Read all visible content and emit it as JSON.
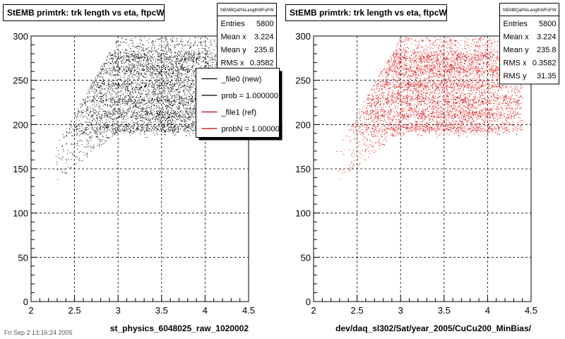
{
  "pads": [
    {
      "title": "StEMB primtrk: trk length vs eta, ftpcW",
      "stats": {
        "name": "StEMBQaPrkLengthWFoFW",
        "rows": [
          {
            "label": "Entries",
            "value": "5800"
          },
          {
            "label": "Mean x",
            "value": "3.224"
          },
          {
            "label": "Mean y",
            "value": "235.8"
          },
          {
            "label": "RMS x",
            "value": "0.3582"
          }
        ]
      },
      "legend": [
        {
          "label": "_file0 (new)",
          "color": "#000000"
        },
        {
          "label": "prob = 1.000000",
          "color": "#000000"
        },
        {
          "label": "_file1 (ref)",
          "color": "#cc0000"
        },
        {
          "label": "probN = 1.000000",
          "color": "#cc0000"
        }
      ],
      "xlabel": "st_physics_6048025_raw_1020002",
      "marker_color": "#000000"
    },
    {
      "title": "StEMB primtrk: trk length vs eta, ftpcW",
      "stats": {
        "name": "StEMBQaPrkLengthWFoFW",
        "rows": [
          {
            "label": "Entries",
            "value": "5800"
          },
          {
            "label": "Mean x",
            "value": "3.224"
          },
          {
            "label": "Mean y",
            "value": "235.8"
          },
          {
            "label": "RMS x",
            "value": "0.3582"
          },
          {
            "label": "RMS y",
            "value": "31.35"
          }
        ]
      },
      "legend": [],
      "xlabel": "dev/daq_sl302/Sat/year_2005/CuCu200_MinBias/",
      "marker_color": "#e00000"
    }
  ],
  "footer": "Fri Sep  2 13:16:24 2005",
  "chart_data": [
    {
      "type": "scatter",
      "title": "StEMB primtrk: trk length vs eta, ftpcW",
      "xlabel": "st_physics_6048025_raw_1020002",
      "ylabel": "",
      "xlim": [
        2,
        4.5
      ],
      "ylim": [
        0,
        300
      ],
      "xticks": [
        "2",
        "2.5",
        "3",
        "3.5",
        "4",
        "4.5"
      ],
      "yticks": [
        "0",
        "50",
        "100",
        "150",
        "200",
        "250",
        "300"
      ],
      "grid": true,
      "series": [
        {
          "color": "#000000",
          "entries": 5800,
          "mean_x": 3.224,
          "mean_y": 235.8,
          "rms_x": 0.3582,
          "rms_y": 31.35,
          "region": {
            "x_min": 2.25,
            "x_knee": 3.0,
            "x_max": 4.4,
            "y_floor_at_xmin": 140,
            "y_floor_at_knee": 200,
            "y_max": 300,
            "band_centers": [
              196,
              212,
              228,
              244,
              262,
              276
            ]
          }
        }
      ]
    },
    {
      "type": "scatter",
      "title": "StEMB primtrk: trk length vs eta, ftpcW",
      "xlabel": "dev/daq_sl302/Sat/year_2005/CuCu200_MinBias/",
      "ylabel": "",
      "xlim": [
        2,
        4.5
      ],
      "ylim": [
        0,
        300
      ],
      "xticks": [
        "2",
        "2.5",
        "3",
        "3.5",
        "4",
        "4.5"
      ],
      "yticks": [
        "0",
        "50",
        "100",
        "150",
        "200",
        "250",
        "300"
      ],
      "grid": true,
      "series": [
        {
          "color": "#e00000",
          "entries": 5800,
          "mean_x": 3.224,
          "mean_y": 235.8,
          "rms_x": 0.3582,
          "rms_y": 31.35,
          "region": {
            "x_min": 2.25,
            "x_knee": 3.0,
            "x_max": 4.4,
            "y_floor_at_xmin": 140,
            "y_floor_at_knee": 200,
            "y_max": 300,
            "band_centers": [
              196,
              212,
              228,
              244,
              262,
              276
            ]
          }
        }
      ]
    }
  ]
}
